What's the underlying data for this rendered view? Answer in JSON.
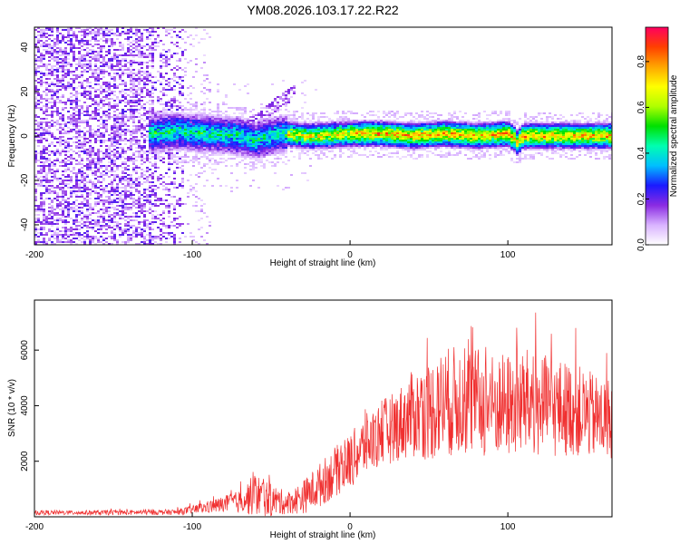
{
  "figure_title": "YM08.2026.103.17.22.R22",
  "chart_data": [
    {
      "type": "heatmap",
      "title": "YM08.2026.103.17.22.R22",
      "xlabel": "Height of straight line (km)",
      "ylabel": "Frequency (Hz)",
      "xlim": [
        -200,
        166
      ],
      "ylim": [
        -49,
        49
      ],
      "x_ticks": [
        -200,
        -100,
        0,
        100
      ],
      "x_tick_labels": [
        "-200",
        "-100",
        "0",
        "100"
      ],
      "y_ticks": [
        -40,
        -20,
        0,
        20,
        40
      ],
      "y_tick_labels": [
        "-40",
        "-20",
        "0",
        "20",
        "40"
      ],
      "colorbar": {
        "label": "Normalized spectral amplitude",
        "range": [
          0,
          0.95
        ],
        "ticks": [
          0.0,
          0.2,
          0.4,
          0.6,
          0.8
        ],
        "tick_labels": [
          "0.0",
          "0.2",
          "0.4",
          "0.6",
          "0.8"
        ],
        "colormap": [
          "#ffffff",
          "#d9b3ff",
          "#8a2be2",
          "#1a1aff",
          "#00bfff",
          "#00ffb0",
          "#00e000",
          "#b0ff00",
          "#ffff00",
          "#ffa500",
          "#ff4000",
          "#ff0060"
        ]
      },
      "ridge": {
        "description": "narrowband signal near 0 Hz",
        "points": [
          [
            -125,
            1
          ],
          [
            -110,
            2
          ],
          [
            -90,
            1
          ],
          [
            -70,
            0
          ],
          [
            -60,
            -2
          ],
          [
            -50,
            0
          ],
          [
            -40,
            1
          ],
          [
            -30,
            0
          ],
          [
            -20,
            0
          ],
          [
            0,
            1
          ],
          [
            20,
            1
          ],
          [
            40,
            0
          ],
          [
            60,
            1
          ],
          [
            80,
            0
          ],
          [
            100,
            1
          ],
          [
            104,
            -1
          ],
          [
            106,
            -3
          ],
          [
            110,
            0
          ],
          [
            130,
            0
          ],
          [
            150,
            0
          ],
          [
            166,
            0
          ]
        ]
      }
    },
    {
      "type": "line",
      "xlabel": "Height of straight line (km)",
      "ylabel": "SNR (10 * v/v)",
      "xlim": [
        -200,
        166
      ],
      "ylim": [
        0,
        7800
      ],
      "x_ticks": [
        -200,
        -100,
        0,
        100
      ],
      "x_tick_labels": [
        "-200",
        "-100",
        "0",
        "100"
      ],
      "y_ticks": [
        2000,
        4000,
        6000
      ],
      "y_tick_labels": [
        "2000",
        "4000",
        "6000"
      ],
      "series": [
        {
          "name": "SNR",
          "color": "#f03030",
          "envelope": {
            "x": [
              -200,
              -150,
              -110,
              -100,
              -80,
              -70,
              -60,
              -50,
              -40,
              -30,
              -20,
              -10,
              0,
              10,
              20,
              30,
              40,
              50,
              60,
              70,
              80,
              90,
              100,
              110,
              120,
              130,
              140,
              150,
              160,
              166
            ],
            "mean": [
              150,
              150,
              170,
              250,
              450,
              550,
              800,
              600,
              500,
              700,
              1100,
              1600,
              2000,
              2600,
              3000,
              3300,
              3700,
              3800,
              4100,
              4200,
              4100,
              4000,
              4000,
              4100,
              4000,
              3900,
              3900,
              3700,
              3500,
              3600
            ],
            "amplitude": [
              80,
              90,
              100,
              150,
              300,
              400,
              800,
              600,
              400,
              600,
              800,
              900,
              1000,
              1100,
              1200,
              1300,
              1600,
              1800,
              2000,
              2000,
              2000,
              1900,
              1900,
              2000,
              1900,
              1800,
              1700,
              1600,
              1500,
              1500
            ]
          }
        }
      ]
    }
  ]
}
